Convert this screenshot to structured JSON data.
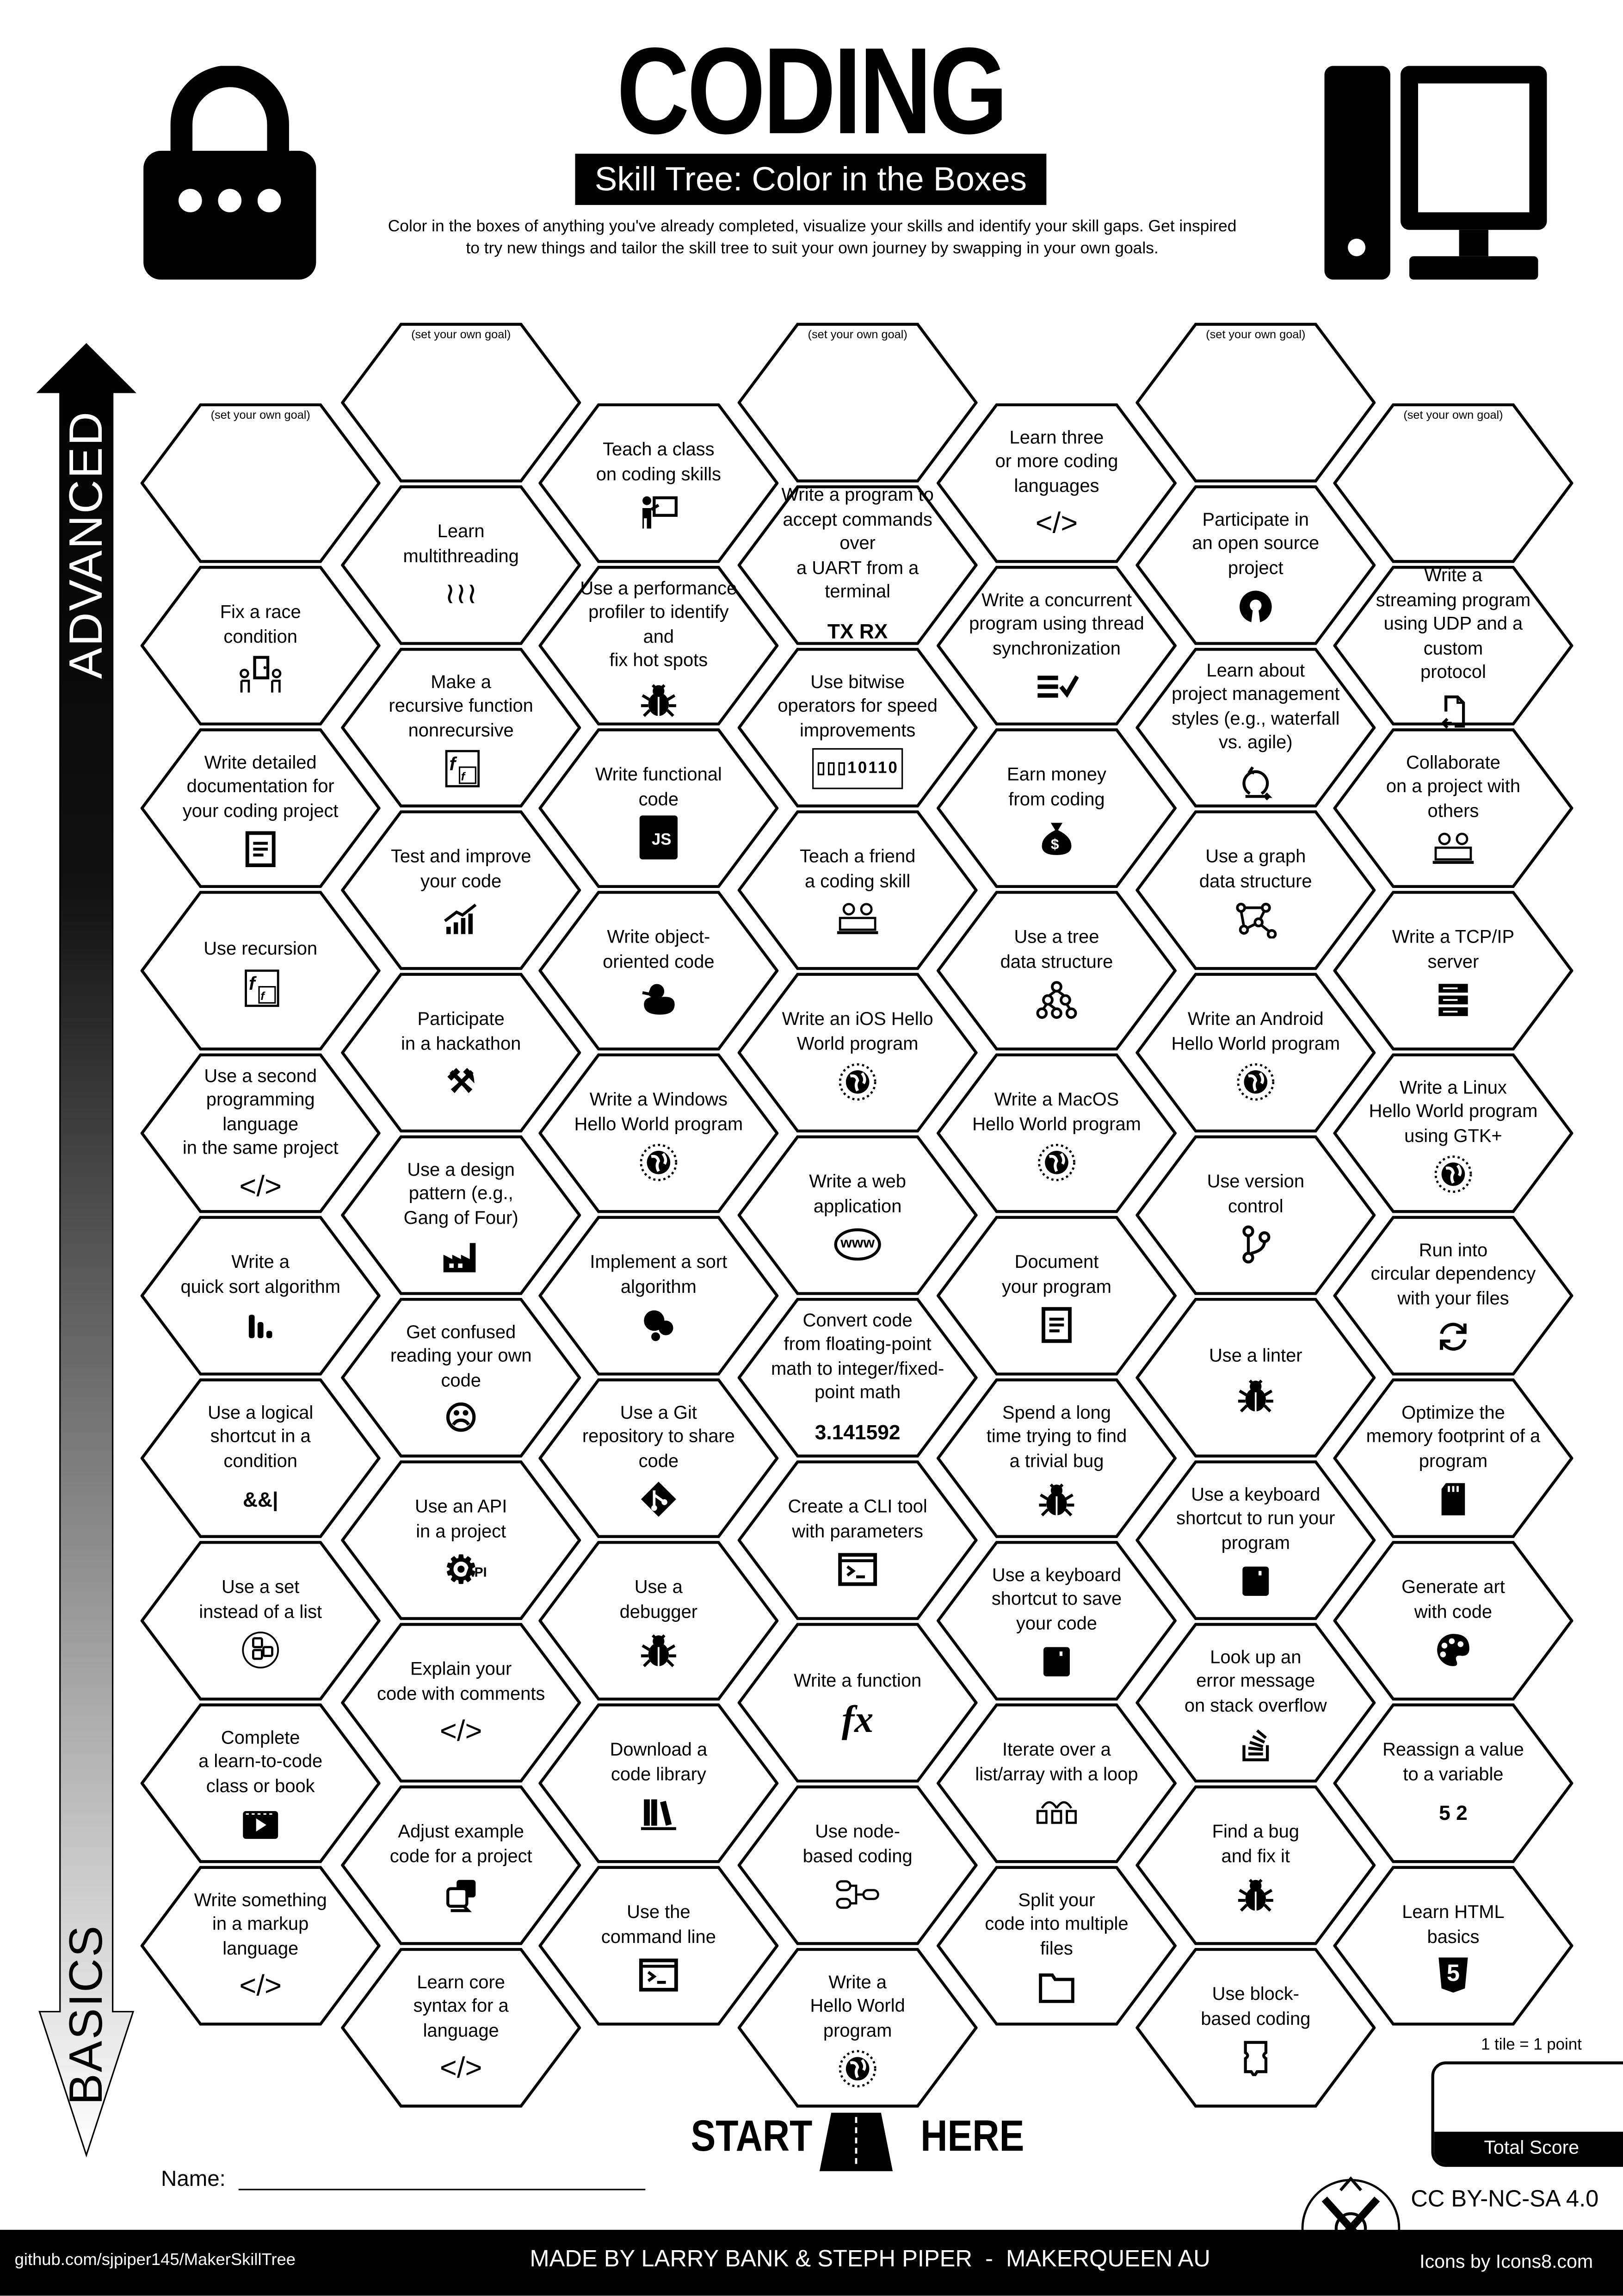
{
  "header": {
    "title": "CODING",
    "subtitle": "Skill Tree: Color in the Boxes",
    "description_line1": "Color in the boxes of anything you've already completed, visualize your skills and identify your skill gaps.  Get inspired",
    "description_line2": "to try new things and tailor the skill tree to suit your own journey by swapping in your own goals.",
    "left_icon": "lock-icon",
    "right_icon": "computer-icon"
  },
  "axis": {
    "top_label": "ADVANCED",
    "bottom_label": "BASICS"
  },
  "columns": [
    {
      "tiles": [
        {
          "goal": "(set your own goal)"
        },
        {
          "text": "Fix a race\ncondition",
          "icon": "race-condition"
        },
        {
          "text": "Write detailed\ndocumentation for\nyour coding project",
          "icon": "document"
        },
        {
          "text": "Use recursion",
          "icon": "recursion"
        },
        {
          "text": "Use a second\nprogramming language\nin the same project",
          "icon": "code"
        },
        {
          "text": "Write a\nquick sort algorithm",
          "icon": "sort-bars"
        },
        {
          "text": "Use a logical\nshortcut in a\ncondition",
          "icon": "text",
          "icon_text": "&&|"
        },
        {
          "text": "Use a set\ninstead of a list",
          "icon": "set"
        },
        {
          "text": "Complete\na learn-to-code\nclass or book",
          "icon": "video"
        },
        {
          "text": "Write something\nin a markup\nlanguage",
          "icon": "code"
        }
      ]
    },
    {
      "tiles": [
        {
          "goal": "(set your own goal)"
        },
        {
          "text": "Learn\nmultithreading",
          "icon": "squiggles"
        },
        {
          "text": "Make a\nrecursive function\nnonrecursive",
          "icon": "recursion"
        },
        {
          "text": "Test and improve\nyour code",
          "icon": "chart-up"
        },
        {
          "text": "Participate\nin a hackathon",
          "icon": "tools"
        },
        {
          "text": "Use a design\npattern (e.g.,\nGang of Four)",
          "icon": "factory"
        },
        {
          "text": "Get confused\nreading your own\ncode",
          "icon": "facepalm"
        },
        {
          "text": "Use an API\nin a project",
          "icon": "gear-api",
          "icon_text": "API"
        },
        {
          "text": "Explain your\ncode with comments",
          "icon": "code"
        },
        {
          "text": "Adjust example\ncode for a project",
          "icon": "copy-code"
        },
        {
          "text": "Learn core\nsyntax for a\nlanguage",
          "icon": "code"
        }
      ]
    },
    {
      "tiles": [
        {
          "text": "Teach a class\non coding skills",
          "icon": "teacher"
        },
        {
          "text": "Use a performance\nprofiler to identify and\nfix hot spots",
          "icon": "bug"
        },
        {
          "text": "Write functional\ncode",
          "icon": "js",
          "icon_text": "JS"
        },
        {
          "text": "Write object-\noriented code",
          "icon": "duck"
        },
        {
          "text": "Write a Windows\nHello World program",
          "icon": "globe"
        },
        {
          "text": "Implement a sort\nalgorithm",
          "icon": "dots"
        },
        {
          "text": "Use a Git\nrepository to share\ncode",
          "icon": "git"
        },
        {
          "text": "Use a\ndebugger",
          "icon": "bug"
        },
        {
          "text": "Download a\ncode library",
          "icon": "library"
        },
        {
          "text": "Use the\ncommand line",
          "icon": "terminal"
        }
      ]
    },
    {
      "tiles": [
        {
          "goal": "(set your own goal)"
        },
        {
          "text": "Write a program to\naccept commands over\na UART from a terminal",
          "icon": "text",
          "icon_text": "TX RX"
        },
        {
          "text": "Use bitwise\noperators for speed\nimprovements",
          "icon": "bits",
          "icon_text": "10110"
        },
        {
          "text": "Teach a friend\na coding skill",
          "icon": "people"
        },
        {
          "text": "Write an iOS Hello\nWorld program",
          "icon": "globe"
        },
        {
          "text": "Write a web\napplication",
          "icon": "www",
          "icon_text": "www"
        },
        {
          "text": "Convert code\nfrom floating-point\nmath to integer/fixed-\npoint math",
          "icon": "text",
          "icon_text": "3.141592"
        },
        {
          "text": "Create a CLI tool\nwith parameters",
          "icon": "terminal"
        },
        {
          "text": "Write a function",
          "icon": "fx",
          "icon_text": "fx"
        },
        {
          "text": "Use node-\nbased coding",
          "icon": "nodes"
        },
        {
          "text": "Write a\nHello World\nprogram",
          "icon": "globe"
        }
      ]
    },
    {
      "tiles": [
        {
          "text": "Learn three\nor more coding\nlanguages",
          "icon": "code"
        },
        {
          "text": "Write a concurrent\nprogram using thread\nsynchronization",
          "icon": "list-check"
        },
        {
          "text": "Earn money\nfrom coding",
          "icon": "money-bag"
        },
        {
          "text": "Use a tree\ndata structure",
          "icon": "tree"
        },
        {
          "text": "Write a MacOS\nHello World program",
          "icon": "globe"
        },
        {
          "text": "Document\nyour program",
          "icon": "document"
        },
        {
          "text": "Spend a long\ntime trying to find\na trivial bug",
          "icon": "bug"
        },
        {
          "text": "Use a keyboard\nshortcut to save\nyour code",
          "icon": "key"
        },
        {
          "text": "Iterate over a\nlist/array with a loop",
          "icon": "loop"
        },
        {
          "text": "Split your\ncode into multiple\nfiles",
          "icon": "folder"
        }
      ]
    },
    {
      "tiles": [
        {
          "goal": "(set your own goal)"
        },
        {
          "text": "Participate in\nan open source\nproject",
          "icon": "open-source"
        },
        {
          "text": "Learn about\nproject management\nstyles (e.g., waterfall\nvs. agile)",
          "icon": "agile"
        },
        {
          "text": "Use a graph\ndata structure",
          "icon": "graph"
        },
        {
          "text": "Write an Android\nHello World program",
          "icon": "globe"
        },
        {
          "text": "Use version\ncontrol",
          "icon": "branch"
        },
        {
          "text": "Use a linter",
          "icon": "bug"
        },
        {
          "text": "Use a keyboard\nshortcut to run your\nprogram",
          "icon": "key"
        },
        {
          "text": "Look up an\nerror message\non stack overflow",
          "icon": "stack"
        },
        {
          "text": "Find a bug\nand fix it",
          "icon": "bug"
        },
        {
          "text": "Use block-\nbased coding",
          "icon": "block"
        }
      ]
    },
    {
      "tiles": [
        {
          "goal": "(set your own goal)"
        },
        {
          "text": "Write a\nstreaming program\nusing UDP and a custom\nprotocol",
          "icon": "file-return"
        },
        {
          "text": "Collaborate\non a project with\nothers",
          "icon": "people"
        },
        {
          "text": "Write a TCP/IP\nserver",
          "icon": "server"
        },
        {
          "text": "Write a Linux\nHello World program\nusing GTK+",
          "icon": "globe"
        },
        {
          "text": "Run into\ncircular dependency\nwith your files",
          "icon": "refresh"
        },
        {
          "text": "Optimize the\nmemory footprint of a\nprogram",
          "icon": "sd-card"
        },
        {
          "text": "Generate art\nwith code",
          "icon": "palette"
        },
        {
          "text": "Reassign a value\nto a variable",
          "icon": "text",
          "icon_text": "5 2"
        },
        {
          "text": "Learn HTML\nbasics",
          "icon": "html5",
          "icon_text": "5"
        }
      ]
    }
  ],
  "start": {
    "left": "START",
    "right": "HERE"
  },
  "name_label": "Name:",
  "score": {
    "note": "1 tile = 1 point",
    "label": "Total Score"
  },
  "license": "CC BY-NC-SA 4.0",
  "footer": {
    "link": "github.com/sjpiper145/MakerSkillTree",
    "credit": "MADE BY LARRY BANK & STEPH PIPER  -  MAKERQUEEN AU",
    "icons_credit": "Icons by Icons8.com"
  }
}
